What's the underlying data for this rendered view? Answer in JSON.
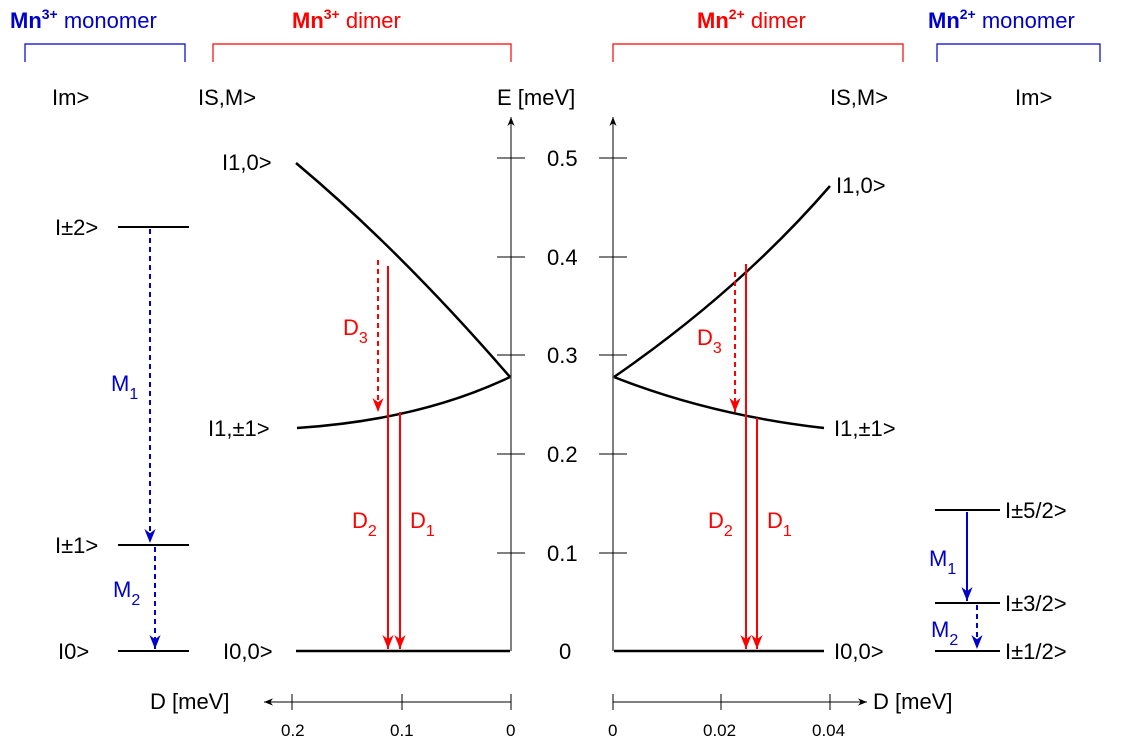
{
  "headers": {
    "mn3_monomer": {
      "base": "Mn",
      "sup": "3+",
      "rest": " monomer"
    },
    "mn3_dimer": {
      "base": "Mn",
      "sup": "3+",
      "rest": " dimer"
    },
    "mn2_dimer": {
      "base": "Mn",
      "sup": "2+",
      "rest": " dimer"
    },
    "mn2_monomer": {
      "base": "Mn",
      "sup": "2+",
      "rest": " monomer"
    }
  },
  "column_labels": {
    "m_left": "Im>",
    "sm_left": "IS,M>",
    "energy_axis": "E [meV]",
    "sm_right": "IS,M>",
    "m_right": "Im>"
  },
  "energy_ticks": [
    "0",
    "0.1",
    "0.2",
    "0.3",
    "0.4",
    "0.5"
  ],
  "left_monomer_levels": [
    "I±2>",
    "I±1>",
    "I0>"
  ],
  "left_dimer_levels": [
    "I1,0>",
    "I1,±1>",
    "I0,0>"
  ],
  "right_dimer_levels": [
    "I1,0>",
    "I1,±1>",
    "I0,0>"
  ],
  "right_monomer_levels": [
    "I±5/2>",
    "I±3/2>",
    "I±1/2>"
  ],
  "transitions": {
    "M": "M",
    "D": "D",
    "m1_sub": "1",
    "m2_sub": "2",
    "d1_sub": "1",
    "d2_sub": "2",
    "d3_sub": "3"
  },
  "d_axis": {
    "label": "D [meV]",
    "left_ticks": [
      "0.2",
      "0.1",
      "0"
    ],
    "right_ticks": [
      "0",
      "0.02",
      "0.04"
    ]
  },
  "colors": {
    "blue": "#0000cc",
    "red": "#ff0000",
    "black": "#000000"
  }
}
